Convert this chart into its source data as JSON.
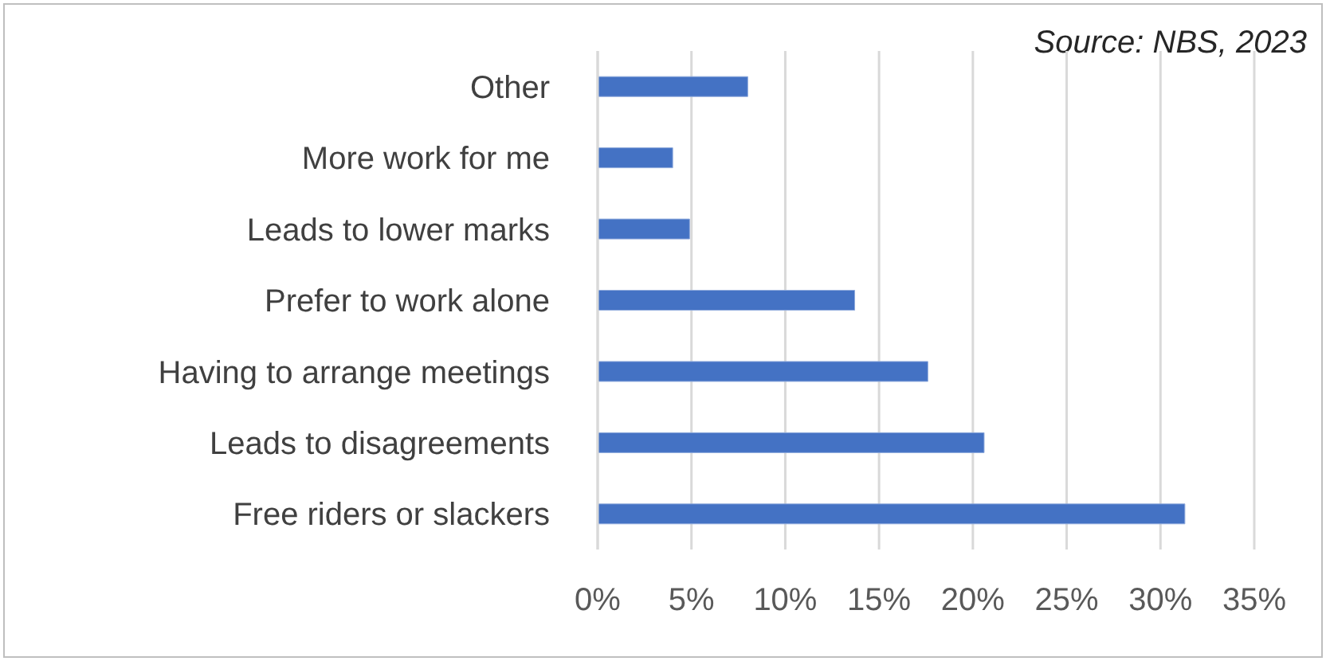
{
  "chart_data": {
    "type": "bar",
    "orientation": "horizontal",
    "categories": [
      "Other",
      "More work for me",
      "Leads to lower marks",
      "Prefer to work alone",
      "Having to arrange meetings",
      "Leads to disagreements",
      "Free riders or slackers"
    ],
    "values": [
      8.0,
      4.0,
      4.9,
      13.7,
      17.6,
      20.6,
      31.3
    ],
    "color": "#4472c4",
    "xlim": [
      0,
      35
    ],
    "xticks": [
      {
        "value": 0,
        "label": "0%"
      },
      {
        "value": 5,
        "label": "5%"
      },
      {
        "value": 10,
        "label": "10%"
      },
      {
        "value": 15,
        "label": "15%"
      },
      {
        "value": 20,
        "label": "20%"
      },
      {
        "value": 25,
        "label": "25%"
      },
      {
        "value": 30,
        "label": "30%"
      },
      {
        "value": 35,
        "label": "35%"
      }
    ],
    "grid": "x",
    "legend": false,
    "annotations": [
      "Source: NBS, 2023"
    ]
  }
}
